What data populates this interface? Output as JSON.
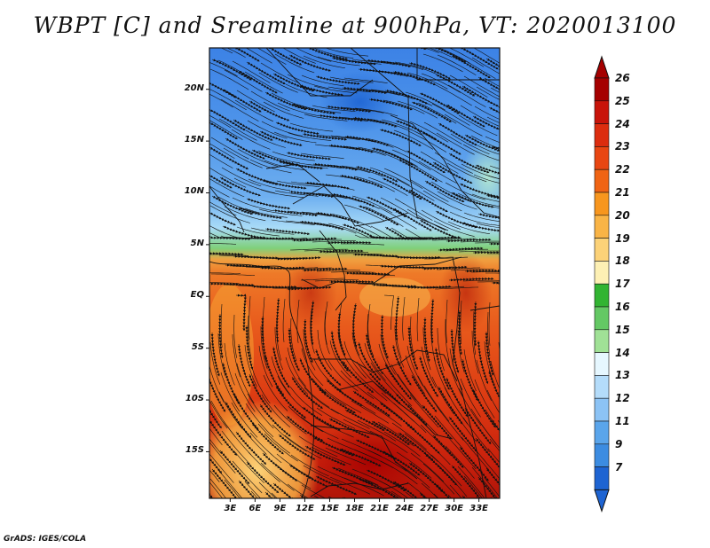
{
  "title": "WBPT [C] and Sreamline at 900hPa, VT: 2020013100",
  "credit": "GrADS: IGES/COLA",
  "map": {
    "variable": "Wet-bulb potential temperature",
    "units": "C",
    "level": "900hPa",
    "valid_time": "2020013100",
    "lat_range": [
      -19.5,
      24
    ],
    "lon_range": [
      0.5,
      35.5
    ],
    "lat_ticks": [
      "20N",
      "15N",
      "10N",
      "5N",
      "EQ",
      "5S",
      "10S",
      "15S"
    ],
    "lat_values": [
      20,
      15,
      10,
      5,
      0,
      -5,
      -10,
      -15
    ],
    "lon_ticks": [
      "3E",
      "6E",
      "9E",
      "12E",
      "15E",
      "18E",
      "21E",
      "24E",
      "27E",
      "30E",
      "33E"
    ],
    "lon_values": [
      3,
      6,
      9,
      12,
      15,
      18,
      21,
      24,
      27,
      30,
      33
    ]
  },
  "colorbar": {
    "labels": [
      "26",
      "25",
      "24",
      "23",
      "22",
      "21",
      "20",
      "19",
      "18",
      "17",
      "16",
      "15",
      "14",
      "13",
      "12",
      "11",
      "9",
      "7"
    ],
    "colors": [
      "#a50000",
      "#c8140a",
      "#dc2d0f",
      "#e84612",
      "#f06414",
      "#f7961e",
      "#f9b446",
      "#fcd278",
      "#fdf0b4",
      "#32b432",
      "#64c864",
      "#a0e196",
      "#e6f7ff",
      "#b4dcfa",
      "#8cc3f5",
      "#5aa5eb",
      "#3c8ce1",
      "#1e64d2"
    ]
  }
}
